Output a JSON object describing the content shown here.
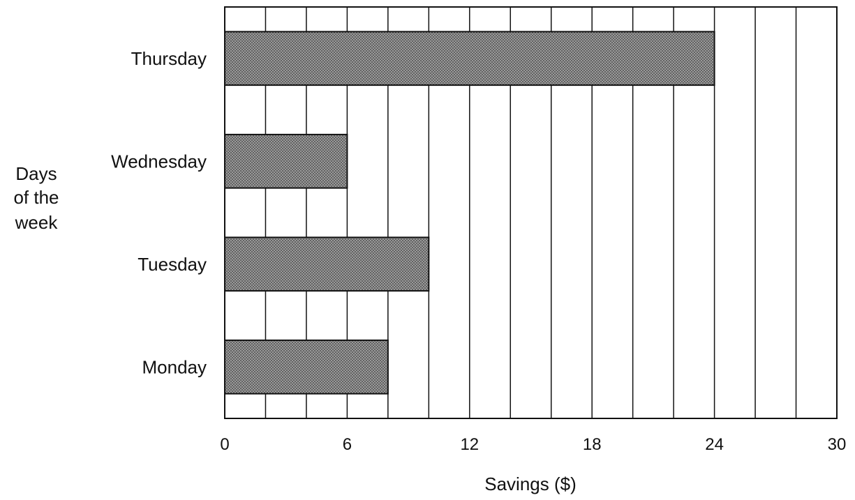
{
  "colors": {
    "bar_fill": "#8a8a8a",
    "bar_pattern_dots": "#3a3a3a",
    "stroke": "#111111",
    "background": "#ffffff"
  },
  "chart_data": {
    "type": "bar",
    "orientation": "horizontal",
    "categories": [
      "Thursday",
      "Wednesday",
      "Tuesday",
      "Monday"
    ],
    "values": [
      24,
      6,
      10,
      8
    ],
    "title": "",
    "xlabel": "Savings ($)",
    "ylabel": "Days of the week",
    "ylabel_lines": [
      "Days",
      "of the",
      "week"
    ],
    "xlim": [
      0,
      30
    ],
    "xticks": [
      0,
      6,
      12,
      18,
      24,
      30
    ],
    "tick_labels": [
      "0",
      "6",
      "12",
      "18",
      "24",
      "30"
    ],
    "minor_step": 2,
    "grid": "vertical",
    "legend": "none"
  }
}
